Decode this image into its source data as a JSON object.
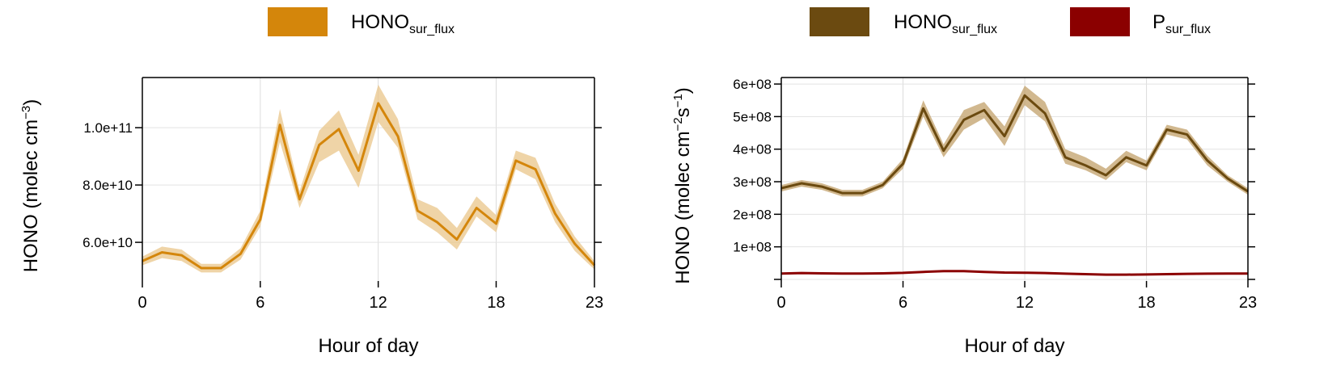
{
  "chart_data": [
    {
      "type": "line",
      "x": [
        0,
        1,
        2,
        3,
        4,
        5,
        6,
        7,
        8,
        9,
        10,
        11,
        12,
        13,
        14,
        15,
        16,
        17,
        18,
        19,
        20,
        21,
        22,
        23
      ],
      "xticks": [
        0,
        6,
        12,
        18,
        23
      ],
      "xlim": [
        0,
        23
      ],
      "ylim": [
        46500000000.0,
        117500000000.0
      ],
      "yticks": [
        60000000000.0,
        80000000000.0,
        100000000000.0
      ],
      "ytick_labels": [
        "6.0e+10",
        "8.0e+10",
        "1.0e+11"
      ],
      "xlabel": "Hour of day",
      "ylabel": {
        "main": "HONO (molec cm",
        "sup": "−3",
        "tail": ")"
      },
      "grid": true,
      "legend_position": "top",
      "series": [
        {
          "name": {
            "main": "HONO",
            "sub": "sur_flux"
          },
          "color": "#d4860b",
          "band_color": "#e9c589",
          "values": [
            53500000000.0,
            56500000000.0,
            55500000000.0,
            51000000000.0,
            51000000000.0,
            56000000000.0,
            68000000000.0,
            101000000000.0,
            75000000000.0,
            94000000000.0,
            99500000000.0,
            85000000000.0,
            108500000000.0,
            97000000000.0,
            71000000000.0,
            67000000000.0,
            61000000000.0,
            72000000000.0,
            66500000000.0,
            88500000000.0,
            85500000000.0,
            70000000000.0,
            59500000000.0,
            52000000000.0
          ],
          "lower": [
            52000000000.0,
            54500000000.0,
            53500000000.0,
            49500000000.0,
            49500000000.0,
            54000000000.0,
            65500000000.0,
            95000000000.0,
            72000000000.0,
            88000000000.0,
            92000000000.0,
            79000000000.0,
            102000000000.0,
            93000000000.0,
            68000000000.0,
            63500000000.0,
            57500000000.0,
            69000000000.0,
            63500000000.0,
            85500000000.0,
            82000000000.0,
            67000000000.0,
            57000000000.0,
            50500000000.0
          ],
          "upper": [
            55000000000.0,
            58500000000.0,
            57500000000.0,
            52500000000.0,
            52500000000.0,
            58000000000.0,
            71000000000.0,
            106500000000.0,
            78000000000.0,
            99000000000.0,
            106000000000.0,
            90500000000.0,
            115000000000.0,
            103000000000.0,
            75000000000.0,
            72000000000.0,
            65000000000.0,
            76000000000.0,
            69500000000.0,
            92000000000.0,
            89500000000.0,
            73500000000.0,
            62000000000.0,
            53500000000.0
          ]
        }
      ]
    },
    {
      "type": "line",
      "x": [
        0,
        1,
        2,
        3,
        4,
        5,
        6,
        7,
        8,
        9,
        10,
        11,
        12,
        13,
        14,
        15,
        16,
        17,
        18,
        19,
        20,
        21,
        22,
        23
      ],
      "xticks": [
        0,
        6,
        12,
        18,
        23
      ],
      "xlim": [
        0,
        23
      ],
      "ylim": [
        -5000000.0,
        620000000.0
      ],
      "yticks": [
        0,
        100000000.0,
        200000000.0,
        300000000.0,
        400000000.0,
        500000000.0,
        600000000.0
      ],
      "ytick_labels": [
        "",
        "1e+08",
        "2e+08",
        "3e+08",
        "4e+08",
        "5e+08",
        "6e+08"
      ],
      "xlabel": "Hour of day",
      "ylabel": {
        "main": "HONO (molec cm",
        "sup": "−2",
        "mid": "s",
        "sup2": "−1",
        "tail": ")"
      },
      "grid": true,
      "legend_position": "top",
      "series": [
        {
          "name": {
            "main": "HONO",
            "sub": "sur_flux"
          },
          "color": "#6b4a10",
          "band_color": "#c2a06a",
          "values": [
            280000000.0,
            295000000.0,
            285000000.0,
            265000000.0,
            265000000.0,
            290000000.0,
            355000000.0,
            525000000.0,
            395000000.0,
            490000000.0,
            520000000.0,
            440000000.0,
            565000000.0,
            510000000.0,
            375000000.0,
            350000000.0,
            320000000.0,
            375000000.0,
            350000000.0,
            460000000.0,
            445000000.0,
            365000000.0,
            310000000.0,
            270000000.0
          ],
          "lower": [
            270000000.0,
            285000000.0,
            275000000.0,
            255000000.0,
            255000000.0,
            280000000.0,
            340000000.0,
            500000000.0,
            375000000.0,
            460000000.0,
            495000000.0,
            410000000.0,
            535000000.0,
            485000000.0,
            355000000.0,
            335000000.0,
            305000000.0,
            360000000.0,
            335000000.0,
            445000000.0,
            430000000.0,
            350000000.0,
            300000000.0,
            260000000.0
          ],
          "upper": [
            290000000.0,
            305000000.0,
            295000000.0,
            275000000.0,
            275000000.0,
            300000000.0,
            370000000.0,
            550000000.0,
            415000000.0,
            520000000.0,
            545000000.0,
            470000000.0,
            595000000.0,
            545000000.0,
            400000000.0,
            375000000.0,
            340000000.0,
            395000000.0,
            365000000.0,
            475000000.0,
            460000000.0,
            380000000.0,
            320000000.0,
            280000000.0
          ]
        },
        {
          "name": {
            "main": "P",
            "sub": "sur_flux"
          },
          "color": "#8b0000",
          "band_color": "#c98a8a",
          "values": [
            18000000.0,
            19500000.0,
            18500000.0,
            18000000.0,
            18000000.0,
            18500000.0,
            20000000.0,
            23000000.0,
            25500000.0,
            25500000.0,
            23000000.0,
            21000000.0,
            20500000.0,
            19500000.0,
            17500000.0,
            16000000.0,
            14500000.0,
            14500000.0,
            15000000.0,
            16000000.0,
            17000000.0,
            17500000.0,
            18000000.0,
            18000000.0
          ],
          "lower": [
            16000000.0,
            17500000.0,
            16500000.0,
            16000000.0,
            16000000.0,
            16500000.0,
            18000000.0,
            20500000.0,
            22500000.0,
            22500000.0,
            20500000.0,
            18500000.0,
            18000000.0,
            17000000.0,
            15000000.0,
            13500000.0,
            12000000.0,
            12000000.0,
            12500000.0,
            13500000.0,
            14500000.0,
            15000000.0,
            15500000.0,
            15500000.0
          ],
          "upper": [
            20000000.0,
            21500000.0,
            20500000.0,
            20000000.0,
            20000000.0,
            20500000.0,
            22000000.0,
            25500000.0,
            28500000.0,
            28500000.0,
            25500000.0,
            23500000.0,
            23000000.0,
            22000000.0,
            20000000.0,
            18500000.0,
            17000000.0,
            17000000.0,
            17500000.0,
            18500000.0,
            19500000.0,
            20000000.0,
            20500000.0,
            20500000.0
          ]
        }
      ]
    }
  ]
}
